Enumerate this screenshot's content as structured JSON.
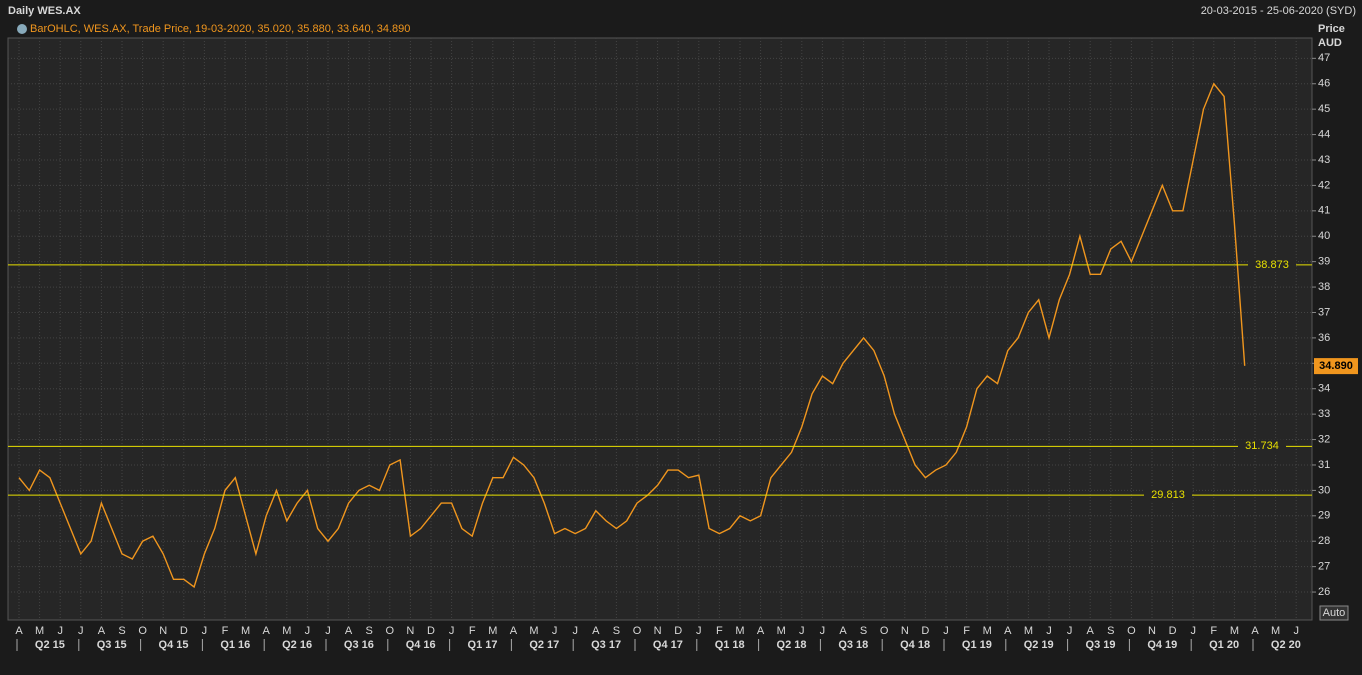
{
  "chart_data": {
    "type": "line",
    "title": "Daily WES.AX",
    "date_range": "20-03-2015 - 25-06-2020 (SYD)",
    "legend_text": "BarOHLC, WES.AX, Trade Price, 19-03-2020, 35.020, 35.880, 33.640, 34.890",
    "y_axis_title": "Price",
    "y_axis_unit": "AUD",
    "auto_button": "Auto",
    "categories": [
      "A",
      null,
      "M",
      null,
      "J",
      null,
      "J",
      null,
      "A",
      null,
      "S",
      null,
      "O",
      null,
      "N",
      null,
      "D",
      null,
      "J",
      null,
      "F",
      null,
      "M",
      null,
      "A",
      null,
      "M",
      null,
      "J",
      null,
      "J",
      null,
      "A",
      null,
      "S",
      null,
      "O",
      null,
      "N",
      null,
      "D",
      null,
      "J",
      null,
      "F",
      null,
      "M",
      null,
      "A",
      null,
      "M",
      null,
      "J",
      null,
      "J",
      null,
      "A",
      null,
      "S",
      null,
      "O",
      null,
      "N",
      null,
      "D",
      null,
      "J",
      null,
      "F",
      null,
      "M",
      null,
      "A",
      null,
      "M",
      null,
      "J",
      null,
      "J",
      null,
      "A",
      null,
      "S",
      null,
      "O",
      null,
      "N",
      null,
      "D",
      null,
      "J",
      null,
      "F",
      null,
      "M",
      null,
      "A",
      null,
      "M",
      null,
      "J",
      null,
      "J",
      null,
      "A",
      null,
      "S",
      null,
      "O",
      null,
      "N",
      null,
      "D",
      null,
      "J",
      null,
      "F",
      null,
      "M",
      null,
      "A",
      null,
      "M",
      null,
      "J",
      null
    ],
    "quarters": [
      "Q2 15",
      "Q3 15",
      "Q4 15",
      "Q1 16",
      "Q2 16",
      "Q3 16",
      "Q4 16",
      "Q1 17",
      "Q2 17",
      "Q3 17",
      "Q4 17",
      "Q1 18",
      "Q2 18",
      "Q3 18",
      "Q4 18",
      "Q1 19",
      "Q2 19",
      "Q3 19",
      "Q4 19",
      "Q1 20",
      "Q2 20"
    ],
    "series": [
      {
        "name": "WES.AX",
        "color": "#f0961e",
        "values": [
          30.5,
          30.0,
          30.8,
          30.5,
          29.5,
          28.5,
          27.5,
          28.0,
          29.5,
          28.5,
          27.5,
          27.3,
          28.0,
          28.2,
          27.5,
          26.5,
          26.5,
          26.2,
          27.5,
          28.5,
          30.0,
          30.5,
          29.0,
          27.5,
          29.0,
          30.0,
          28.8,
          29.5,
          30.0,
          28.5,
          28.0,
          28.5,
          29.5,
          30.0,
          30.2,
          30.0,
          31.0,
          31.2,
          28.2,
          28.5,
          29.0,
          29.5,
          29.5,
          28.5,
          28.2,
          29.5,
          30.5,
          30.5,
          31.3,
          31.0,
          30.5,
          29.5,
          28.3,
          28.5,
          28.3,
          28.5,
          29.2,
          28.8,
          28.5,
          28.8,
          29.5,
          29.8,
          30.2,
          30.8,
          30.8,
          30.5,
          30.6,
          28.5,
          28.3,
          28.5,
          29.0,
          28.8,
          29.0,
          30.5,
          31.0,
          31.5,
          32.5,
          33.8,
          34.5,
          34.2,
          35.0,
          35.5,
          36.0,
          35.5,
          34.5,
          33.0,
          32.0,
          31.0,
          30.5,
          30.8,
          31.0,
          31.5,
          32.5,
          34.0,
          34.5,
          34.2,
          35.5,
          36.0,
          37.0,
          37.5,
          36.0,
          37.5,
          38.5,
          40.0,
          38.5,
          38.5,
          39.5,
          39.8,
          39.0,
          40.0,
          41.0,
          42.0,
          41.0,
          41.0,
          43.0,
          45.0,
          46.0,
          45.5,
          40.5,
          34.9,
          null,
          null,
          null,
          null,
          null,
          null
        ]
      }
    ],
    "levels": [
      38.873,
      31.734,
      29.813
    ],
    "level_color": "#e8e000",
    "last_price": {
      "value": 34.89,
      "label": "34.890"
    },
    "ylim": [
      24.9,
      47.8
    ],
    "yticks": [
      26,
      27,
      28,
      29,
      30,
      31,
      32,
      33,
      34,
      35,
      36,
      37,
      38,
      39,
      40,
      41,
      42,
      43,
      44,
      45,
      46,
      47
    ],
    "grid": true
  }
}
